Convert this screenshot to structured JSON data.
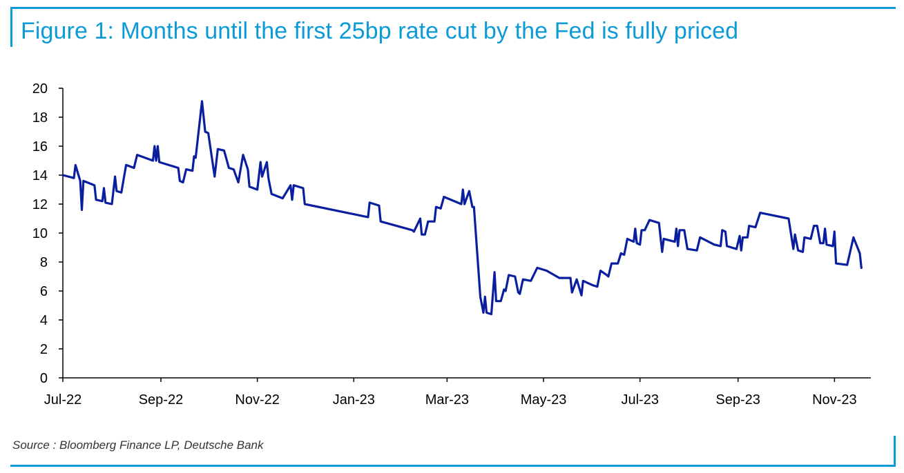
{
  "title": "Figure 1: Months until the first 25bp rate cut by the Fed is fully priced",
  "source": "Source : Bloomberg Finance LP, Deutsche Bank",
  "colors": {
    "accent": "#0c9bd6",
    "line": "#0a1ea0",
    "axis": "#000000"
  },
  "chart_data": {
    "type": "line",
    "title": "Months until the first 25bp rate cut by the Fed is fully priced",
    "xlabel": "",
    "ylabel": "",
    "xlim": [
      "2022-07-01",
      "2023-11-24"
    ],
    "ylim": [
      0,
      20
    ],
    "yticks": [
      0,
      2,
      4,
      6,
      8,
      10,
      12,
      14,
      16,
      18,
      20
    ],
    "xticks": [
      {
        "date": "2022-07-01",
        "label": "Jul-22"
      },
      {
        "date": "2022-09-01",
        "label": "Sep-22"
      },
      {
        "date": "2022-11-01",
        "label": "Nov-22"
      },
      {
        "date": "2023-01-01",
        "label": "Jan-23"
      },
      {
        "date": "2023-03-01",
        "label": "Mar-23"
      },
      {
        "date": "2023-05-01",
        "label": "May-23"
      },
      {
        "date": "2023-07-01",
        "label": "Jul-23"
      },
      {
        "date": "2023-09-01",
        "label": "Sep-23"
      },
      {
        "date": "2023-11-01",
        "label": "Nov-23"
      }
    ],
    "grid": false,
    "legend": "none",
    "series": [
      {
        "points": [
          [
            "2022-07-01",
            14.0
          ],
          [
            "2022-07-08",
            13.8
          ],
          [
            "2022-07-09",
            14.7
          ],
          [
            "2022-07-12",
            13.6
          ],
          [
            "2022-07-13",
            11.6
          ],
          [
            "2022-07-14",
            13.6
          ],
          [
            "2022-07-21",
            13.3
          ],
          [
            "2022-07-22",
            12.3
          ],
          [
            "2022-07-26",
            12.2
          ],
          [
            "2022-07-27",
            13.1
          ],
          [
            "2022-07-28",
            12.1
          ],
          [
            "2022-08-01",
            12.0
          ],
          [
            "2022-08-03",
            13.9
          ],
          [
            "2022-08-04",
            12.9
          ],
          [
            "2022-08-07",
            12.8
          ],
          [
            "2022-08-10",
            14.7
          ],
          [
            "2022-08-15",
            14.5
          ],
          [
            "2022-08-17",
            15.4
          ],
          [
            "2022-08-27",
            15.0
          ],
          [
            "2022-08-28",
            16.0
          ],
          [
            "2022-08-29",
            15.0
          ],
          [
            "2022-08-30",
            16.0
          ],
          [
            "2022-08-31",
            14.9
          ],
          [
            "2022-09-12",
            14.5
          ],
          [
            "2022-09-13",
            13.6
          ],
          [
            "2022-09-15",
            13.5
          ],
          [
            "2022-09-17",
            14.4
          ],
          [
            "2022-09-21",
            14.3
          ],
          [
            "2022-09-22",
            15.3
          ],
          [
            "2022-09-23",
            15.2
          ],
          [
            "2022-09-27",
            19.1
          ],
          [
            "2022-09-29",
            17.0
          ],
          [
            "2022-10-01",
            16.9
          ],
          [
            "2022-10-05",
            13.9
          ],
          [
            "2022-10-07",
            15.8
          ],
          [
            "2022-10-11",
            15.7
          ],
          [
            "2022-10-14",
            14.5
          ],
          [
            "2022-10-17",
            14.4
          ],
          [
            "2022-10-20",
            13.5
          ],
          [
            "2022-10-23",
            15.4
          ],
          [
            "2022-10-26",
            14.4
          ],
          [
            "2022-10-27",
            13.2
          ],
          [
            "2022-11-01",
            13.0
          ],
          [
            "2022-11-03",
            14.9
          ],
          [
            "2022-11-04",
            13.9
          ],
          [
            "2022-11-07",
            14.9
          ],
          [
            "2022-11-08",
            13.8
          ],
          [
            "2022-11-10",
            12.7
          ],
          [
            "2022-11-17",
            12.4
          ],
          [
            "2022-11-22",
            13.3
          ],
          [
            "2022-11-23",
            12.3
          ],
          [
            "2022-11-24",
            13.3
          ],
          [
            "2022-11-30",
            13.1
          ],
          [
            "2022-12-01",
            12.0
          ],
          [
            "2023-01-10",
            11.1
          ],
          [
            "2023-01-11",
            12.1
          ],
          [
            "2023-01-17",
            11.9
          ],
          [
            "2023-01-18",
            10.8
          ],
          [
            "2023-02-07",
            10.2
          ],
          [
            "2023-02-08",
            10.1
          ],
          [
            "2023-02-12",
            11.0
          ],
          [
            "2023-02-13",
            9.9
          ],
          [
            "2023-02-15",
            9.9
          ],
          [
            "2023-02-17",
            10.8
          ],
          [
            "2023-02-21",
            10.8
          ],
          [
            "2023-02-22",
            11.8
          ],
          [
            "2023-02-25",
            11.7
          ],
          [
            "2023-02-27",
            12.5
          ],
          [
            "2023-03-10",
            12.0
          ],
          [
            "2023-03-11",
            13.0
          ],
          [
            "2023-03-12",
            12.0
          ],
          [
            "2023-03-15",
            12.9
          ],
          [
            "2023-03-17",
            11.8
          ],
          [
            "2023-03-18",
            11.8
          ],
          [
            "2023-03-22",
            5.6
          ],
          [
            "2023-03-24",
            4.5
          ],
          [
            "2023-03-25",
            5.6
          ],
          [
            "2023-03-26",
            4.5
          ],
          [
            "2023-03-29",
            4.4
          ],
          [
            "2023-03-31",
            7.3
          ],
          [
            "2023-04-01",
            5.3
          ],
          [
            "2023-04-04",
            5.3
          ],
          [
            "2023-04-06",
            6.1
          ],
          [
            "2023-04-07",
            6.0
          ],
          [
            "2023-04-09",
            7.1
          ],
          [
            "2023-04-13",
            7.0
          ],
          [
            "2023-04-15",
            5.9
          ],
          [
            "2023-04-16",
            5.8
          ],
          [
            "2023-04-18",
            6.8
          ],
          [
            "2023-04-23",
            6.7
          ],
          [
            "2023-04-27",
            7.6
          ],
          [
            "2023-05-03",
            7.4
          ],
          [
            "2023-05-11",
            6.9
          ],
          [
            "2023-05-18",
            6.9
          ],
          [
            "2023-05-19",
            5.9
          ],
          [
            "2023-05-22",
            6.8
          ],
          [
            "2023-05-25",
            5.7
          ],
          [
            "2023-05-26",
            6.7
          ],
          [
            "2023-06-01",
            6.4
          ],
          [
            "2023-06-04",
            6.3
          ],
          [
            "2023-06-06",
            7.4
          ],
          [
            "2023-06-10",
            7.1
          ],
          [
            "2023-06-11",
            7.0
          ],
          [
            "2023-06-13",
            7.9
          ],
          [
            "2023-06-17",
            7.9
          ],
          [
            "2023-06-19",
            8.6
          ],
          [
            "2023-06-21",
            8.5
          ],
          [
            "2023-06-23",
            9.6
          ],
          [
            "2023-06-27",
            9.4
          ],
          [
            "2023-06-28",
            10.3
          ],
          [
            "2023-06-29",
            9.3
          ],
          [
            "2023-07-01",
            9.2
          ],
          [
            "2023-07-02",
            10.2
          ],
          [
            "2023-07-04",
            10.2
          ],
          [
            "2023-07-07",
            10.9
          ],
          [
            "2023-07-13",
            10.7
          ],
          [
            "2023-07-15",
            8.7
          ],
          [
            "2023-07-16",
            9.6
          ],
          [
            "2023-07-23",
            9.4
          ],
          [
            "2023-07-24",
            10.3
          ],
          [
            "2023-07-25",
            9.1
          ],
          [
            "2023-07-26",
            10.2
          ],
          [
            "2023-07-29",
            10.2
          ],
          [
            "2023-07-31",
            8.9
          ],
          [
            "2023-08-06",
            8.8
          ],
          [
            "2023-08-08",
            9.7
          ],
          [
            "2023-08-17",
            9.2
          ],
          [
            "2023-08-21",
            9.1
          ],
          [
            "2023-08-22",
            10.2
          ],
          [
            "2023-08-24",
            10.1
          ],
          [
            "2023-08-25",
            9.1
          ],
          [
            "2023-08-31",
            8.9
          ],
          [
            "2023-09-02",
            9.8
          ],
          [
            "2023-09-03",
            8.8
          ],
          [
            "2023-09-04",
            9.7
          ],
          [
            "2023-09-07",
            9.7
          ],
          [
            "2023-09-08",
            10.5
          ],
          [
            "2023-09-12",
            10.4
          ],
          [
            "2023-09-15",
            11.4
          ],
          [
            "2023-10-03",
            11.0
          ],
          [
            "2023-10-06",
            8.9
          ],
          [
            "2023-10-07",
            9.9
          ],
          [
            "2023-10-09",
            8.8
          ],
          [
            "2023-10-12",
            8.7
          ],
          [
            "2023-10-13",
            9.7
          ],
          [
            "2023-10-17",
            9.6
          ],
          [
            "2023-10-19",
            10.5
          ],
          [
            "2023-10-21",
            10.5
          ],
          [
            "2023-10-23",
            9.3
          ],
          [
            "2023-10-25",
            9.3
          ],
          [
            "2023-10-26",
            10.3
          ],
          [
            "2023-10-27",
            9.2
          ],
          [
            "2023-10-31",
            9.1
          ],
          [
            "2023-11-01",
            10.1
          ],
          [
            "2023-11-02",
            7.9
          ],
          [
            "2023-11-09",
            7.8
          ],
          [
            "2023-11-13",
            9.7
          ],
          [
            "2023-11-17",
            8.6
          ],
          [
            "2023-11-18",
            7.6
          ]
        ]
      }
    ]
  }
}
